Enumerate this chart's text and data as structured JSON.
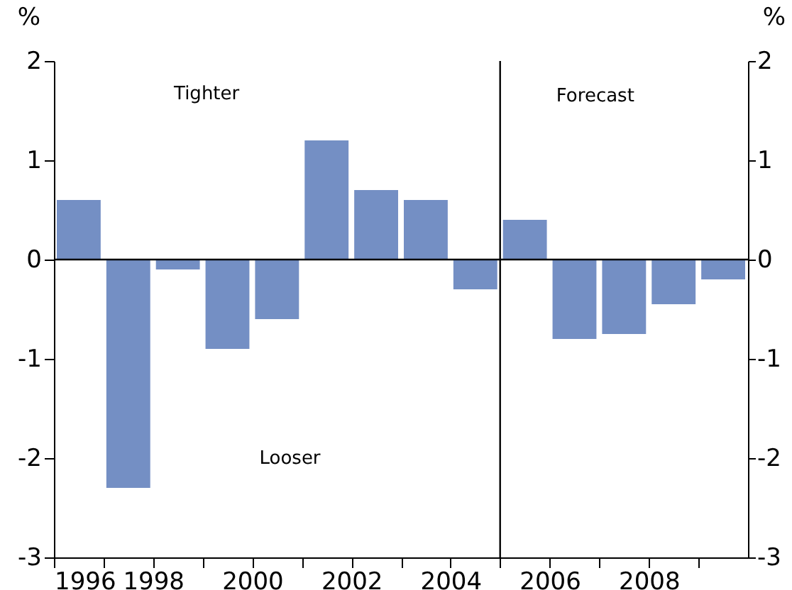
{
  "chart_data": {
    "type": "bar",
    "x": [
      1996.5,
      1997.5,
      1998.5,
      1999.5,
      2000.5,
      2001.5,
      2002.5,
      2003.5,
      2004.5,
      2005.5,
      2006.5,
      2007.5,
      2008.5,
      2009.5
    ],
    "series": [
      {
        "color": "#748fc4",
        "values": [
          0.6,
          -2.3,
          -0.1,
          -0.9,
          -0.6,
          1.2,
          0.7,
          0.6,
          -0.3,
          0.4,
          -0.8,
          -0.75,
          -0.45,
          -0.2
        ]
      }
    ],
    "ylabel": "%",
    "y2label": "%",
    "ylim": [
      -3,
      2
    ],
    "yticks": [
      -3,
      -2,
      -1,
      0,
      1,
      2
    ],
    "y2lim": [
      -3,
      2
    ],
    "y2ticks": [
      -3,
      -2,
      -1,
      0,
      1,
      2
    ],
    "xlim": [
      1996,
      2010
    ],
    "xticks": [
      1996,
      {
        "value": 1997,
        "label": null
      },
      1998,
      {
        "value": 1999,
        "label": null
      },
      2000,
      {
        "value": 2001,
        "label": null
      },
      2002,
      {
        "value": 2003,
        "label": null
      },
      2004,
      {
        "value": 2005,
        "label": null
      },
      2006,
      {
        "value": 2007,
        "label": null
      },
      2008,
      {
        "value": 2009,
        "label": null
      }
    ],
    "annotations": [
      "Tighter",
      "Looser",
      "Forecast"
    ],
    "ref_lines": [
      {
        "axis": "x",
        "value": 2005,
        "color": "#000000"
      },
      {
        "axis": "y",
        "value": 0,
        "color": "#000000"
      }
    ],
    "grid": false,
    "legend": false
  }
}
